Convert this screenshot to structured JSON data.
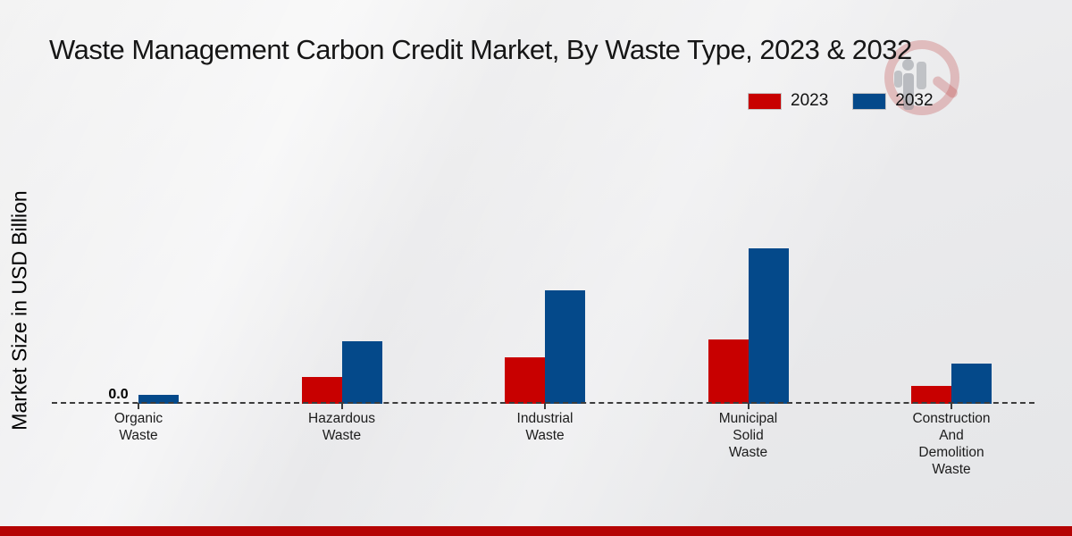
{
  "page": {
    "accent_band_color": "#b50404"
  },
  "chart_data": {
    "type": "bar",
    "title": "Waste Management Carbon Credit Market, By Waste Type, 2023 & 2032",
    "ylabel": "Market Size in USD Billion",
    "xlabel": "",
    "units": "USD Billion",
    "categories": [
      "Organic\nWaste",
      "Hazardous\nWaste",
      "Industrial\nWaste",
      "Municipal\nSolid\nWaste",
      "Construction\nAnd\nDemolition\nWaste"
    ],
    "series": [
      {
        "name": "2023",
        "color": "#c80000",
        "values": [
          0.0,
          0.6,
          1.05,
          1.45,
          0.4
        ]
      },
      {
        "name": "2032",
        "color": "#04498a",
        "values": [
          0.2,
          1.4,
          2.55,
          3.5,
          0.9
        ]
      }
    ],
    "data_labels": [
      {
        "series_index": 0,
        "category_index": 0,
        "text": "0.0"
      }
    ],
    "ylim": [
      0,
      4
    ],
    "grid": false,
    "baseline_style": "dashed",
    "legend_position": "top-right"
  }
}
